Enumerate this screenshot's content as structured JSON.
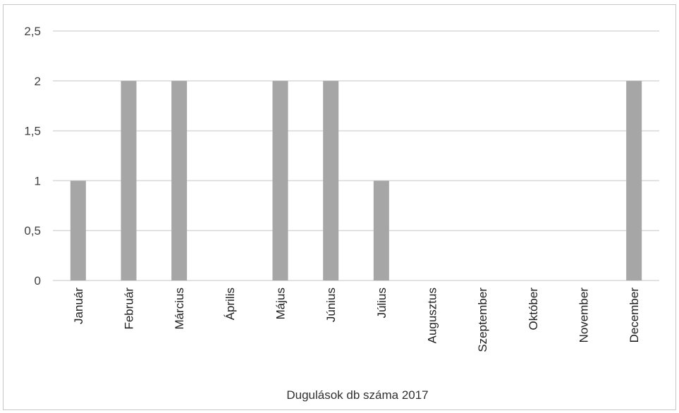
{
  "chart_data": {
    "type": "bar",
    "categories": [
      "Január",
      "Február",
      "Március",
      "Április",
      "Május",
      "Június",
      "Július",
      "Augusztus",
      "Szeptember",
      "Október",
      "November",
      "December"
    ],
    "values": [
      1,
      2,
      2,
      0,
      2,
      2,
      1,
      0,
      0,
      0,
      0,
      2
    ],
    "ylim": [
      0,
      2.5
    ],
    "yticks": [
      0,
      0.5,
      1,
      1.5,
      2,
      2.5
    ],
    "ytick_labels": [
      "0",
      "0,5",
      "1",
      "1,5",
      "2",
      "2,5"
    ],
    "xlabel": "Dugulások db száma 2017",
    "ylabel": "",
    "title": "",
    "grid": true,
    "colors": {
      "bar": "#a6a6a6",
      "grid": "#d9d9d9",
      "frame": "#c8c8c8"
    }
  }
}
